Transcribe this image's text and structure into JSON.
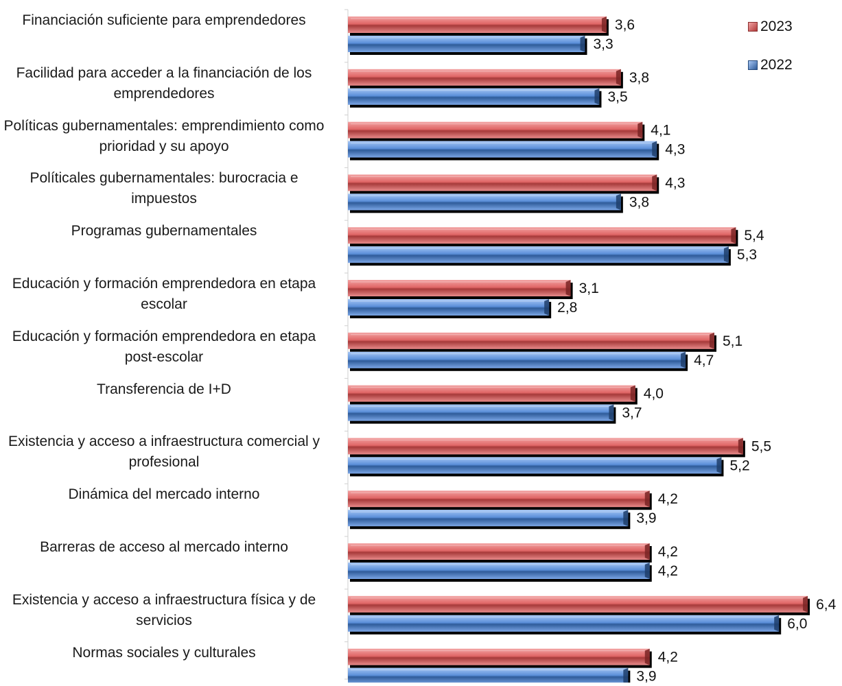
{
  "chart_data": {
    "type": "bar",
    "orientation": "horizontal",
    "title": "",
    "xlabel": "",
    "ylabel": "",
    "xlim": [
      0,
      6.4
    ],
    "grid": false,
    "legend_position": "top-right",
    "categories": [
      "Financiación suficiente para emprendedores",
      "Facilidad para acceder a la financiación de los emprendedores",
      "Políticas gubernamentales: emprendimiento como prioridad y su apoyo",
      "Políticales gubernamentales: burocracia e impuestos",
      "Programas gubernamentales",
      "Educación y formación emprendedora en etapa escolar",
      "Educación y formación emprendedora en etapa post-escolar",
      "Transferencia de I+D",
      "Existencia y acceso a infraestructura comercial y profesional",
      "Dinámica del mercado interno",
      "Barreras de acceso al mercado interno",
      "Existencia y acceso a infraestructura física y de servicios",
      "Normas sociales y culturales"
    ],
    "series": [
      {
        "name": "2023",
        "color": "#e06666",
        "values": [
          3.6,
          3.8,
          4.1,
          4.3,
          5.4,
          3.1,
          5.1,
          4.0,
          5.5,
          4.2,
          4.2,
          6.4,
          4.2
        ],
        "labels": [
          "3,6",
          "3,8",
          "4,1",
          "4,3",
          "5,4",
          "3,1",
          "5,1",
          "4,0",
          "5,5",
          "4,2",
          "4,2",
          "6,4",
          "4,2"
        ]
      },
      {
        "name": "2022",
        "color": "#5b8fd9",
        "values": [
          3.3,
          3.5,
          4.3,
          3.8,
          5.3,
          2.8,
          4.7,
          3.7,
          5.2,
          3.9,
          4.2,
          6.0,
          3.9
        ],
        "labels": [
          "3,3",
          "3,5",
          "4,3",
          "3,8",
          "5,3",
          "2,8",
          "4,7",
          "3,7",
          "5,2",
          "3,9",
          "4,2",
          "6,0",
          "3,9"
        ]
      }
    ]
  }
}
